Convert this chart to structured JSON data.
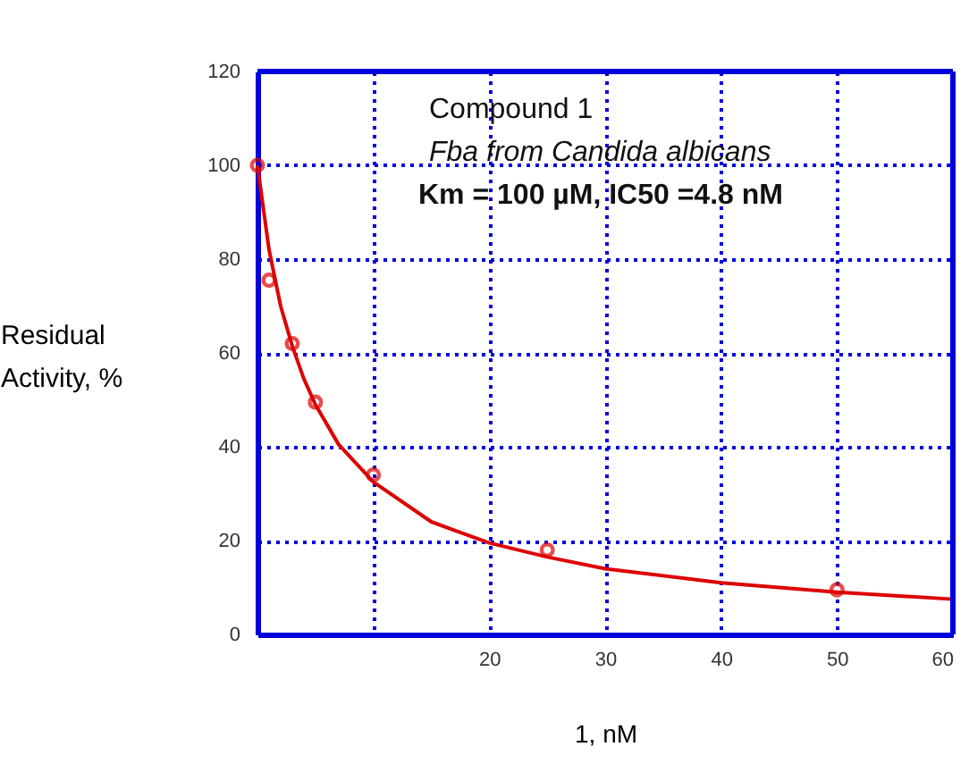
{
  "chart_data": {
    "type": "scatter",
    "xlabel": "1, nM",
    "ylabel": "Residual Activity, %",
    "annotations": [
      "Compound 1",
      "Fba from Candida albicans",
      "Km = 100 µM,  IC50 =4.8 nM"
    ],
    "xlim": [
      0,
      60
    ],
    "xticks": [
      {
        "value": 0,
        "label": null
      },
      {
        "value": 10,
        "label": null
      },
      20,
      30,
      40,
      50,
      60
    ],
    "ylim": [
      0,
      120
    ],
    "yticks": [
      0,
      20,
      40,
      60,
      80,
      100,
      120
    ],
    "grid": true,
    "series": [
      {
        "color": "#dd0000",
        "marker": "circle",
        "x": [
          0,
          1,
          3,
          5,
          10,
          25,
          50
        ],
        "values": [
          100,
          75.5,
          62,
          49.5,
          34,
          18,
          9.5
        ]
      },
      {
        "type": "line",
        "color": "#dd0000",
        "marker": "none",
        "line_style": "solid",
        "x": [
          0,
          1,
          2,
          3,
          4,
          5,
          7,
          10,
          15,
          20,
          25,
          30,
          40,
          50,
          60
        ],
        "values": [
          100,
          82,
          70,
          61.5,
          54.5,
          49,
          40.5,
          32.5,
          24,
          19.5,
          16.5,
          14,
          11,
          9,
          7.5
        ]
      }
    ]
  }
}
